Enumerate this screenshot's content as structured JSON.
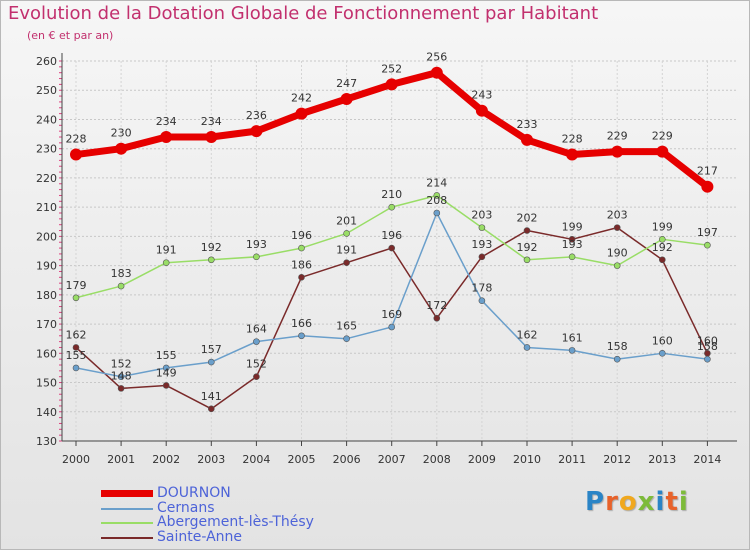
{
  "title": "Evolution de la Dotation Globale de Fonctionnement par Habitant",
  "subtitle": "(en € et par an)",
  "logo": {
    "text": "Proxiti",
    "letters": [
      {
        "ch": "P",
        "color": "#2a84c6"
      },
      {
        "ch": "r",
        "color": "#e8622a"
      },
      {
        "ch": "o",
        "color": "#f0a81e"
      },
      {
        "ch": "x",
        "color": "#7dbb3a"
      },
      {
        "ch": "i",
        "color": "#2a84c6"
      },
      {
        "ch": "t",
        "color": "#e8622a"
      },
      {
        "ch": "i",
        "color": "#7dbb3a"
      }
    ]
  },
  "chart_data": {
    "type": "line",
    "x": [
      "2000",
      "2001",
      "2002",
      "2003",
      "2004",
      "2005",
      "2006",
      "2007",
      "2008",
      "2009",
      "2010",
      "2011",
      "2012",
      "2013",
      "2014"
    ],
    "ylim": [
      130,
      260
    ],
    "yticks": [
      130,
      140,
      150,
      160,
      170,
      180,
      190,
      200,
      210,
      220,
      230,
      240,
      250,
      260
    ],
    "grid": "horizontal dashed",
    "legend_position": "bottom-left",
    "series": [
      {
        "name": "DOURNON",
        "color": "#e60000",
        "width": 7,
        "marker": 6,
        "values": [
          228,
          230,
          234,
          234,
          236,
          242,
          247,
          252,
          256,
          243,
          233,
          228,
          229,
          229,
          217
        ]
      },
      {
        "name": "Cernans",
        "color": "#6a9fcb",
        "width": 1.5,
        "marker": 3,
        "values": [
          155,
          152,
          155,
          157,
          164,
          166,
          165,
          169,
          208,
          178,
          162,
          161,
          158,
          160,
          158
        ]
      },
      {
        "name": "Abergement-lès-Thésy",
        "color": "#99dd66",
        "width": 1.5,
        "marker": 3,
        "values": [
          179,
          183,
          191,
          192,
          193,
          196,
          201,
          210,
          214,
          203,
          192,
          193,
          190,
          199,
          197
        ]
      },
      {
        "name": "Sainte-Anne",
        "color": "#7a2a2a",
        "width": 1.5,
        "marker": 3,
        "values": [
          162,
          148,
          149,
          141,
          152,
          186,
          191,
          196,
          172,
          193,
          202,
          199,
          203,
          192,
          160
        ]
      }
    ]
  }
}
